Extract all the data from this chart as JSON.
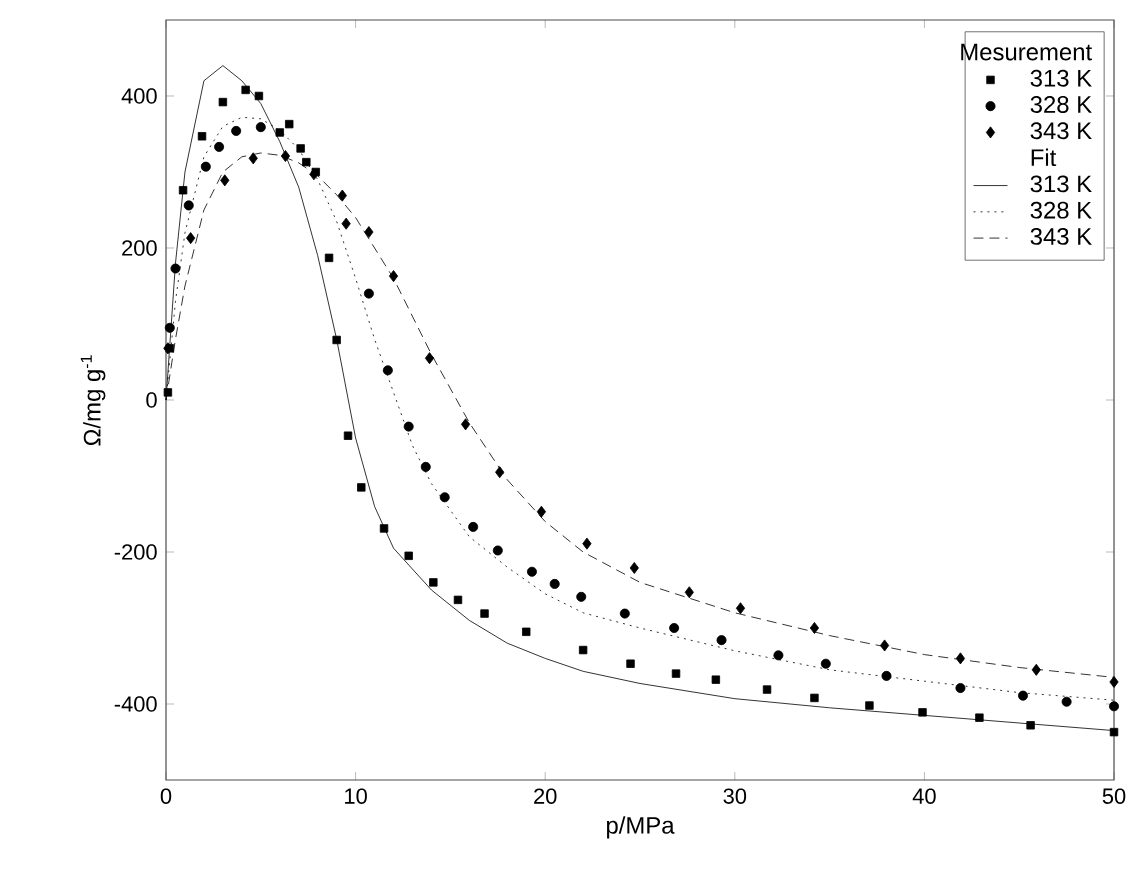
{
  "chart_data": {
    "type": "scatter",
    "xlabel": "p/MPa",
    "ylabel": "Ω/mg g$^{-1}$",
    "legend_title": "Mesurement",
    "annotations": [
      "Fit"
    ],
    "xlim": [
      0,
      50
    ],
    "ylim": [
      -500,
      500
    ],
    "xticks": [
      0,
      10,
      20,
      30,
      40,
      50
    ],
    "yticks": [
      -400,
      -200,
      0,
      200,
      400
    ],
    "legend": "top right",
    "grid": false,
    "series": [
      {
        "name": "313 K",
        "marker": "square",
        "color": "#000000",
        "x": [
          0.1,
          0.2,
          0.9,
          1.9,
          3.0,
          4.2,
          4.9,
          6.0,
          6.5,
          7.1,
          7.4,
          7.9,
          8.6,
          9.0,
          9.6,
          10.3,
          11.5,
          12.8,
          14.1,
          15.4,
          16.8,
          19.0,
          22.0,
          24.5,
          26.9,
          29.0,
          31.7,
          34.2,
          37.1,
          39.9,
          42.9,
          45.6,
          50.0
        ],
        "values": [
          10,
          68,
          276,
          347,
          392,
          408,
          400,
          352,
          363,
          331,
          313,
          300,
          187,
          79,
          -47,
          -115,
          -169,
          -205,
          -240,
          -263,
          -281,
          -305,
          -329,
          -347,
          -360,
          -368,
          -381,
          -392,
          -402,
          -411,
          -418,
          -428,
          -437
        ]
      },
      {
        "name": "328 K",
        "marker": "circle",
        "color": "#000000",
        "x": [
          0.2,
          0.5,
          1.2,
          2.1,
          2.8,
          3.7,
          5.0,
          10.7,
          11.7,
          12.8,
          13.7,
          14.7,
          16.2,
          17.5,
          19.3,
          20.5,
          21.9,
          24.2,
          26.8,
          29.3,
          32.3,
          34.8,
          38.0,
          41.9,
          45.2,
          47.5,
          50.0
        ],
        "values": [
          95,
          173,
          256,
          307,
          333,
          354,
          359,
          140,
          39,
          -35,
          -88,
          -128,
          -167,
          -198,
          -226,
          -242,
          -259,
          -281,
          -300,
          -316,
          -336,
          -347,
          -363,
          -379,
          -389,
          -397,
          -403
        ]
      },
      {
        "name": "343 K",
        "marker": "diamond",
        "color": "#000000",
        "x": [
          0.1,
          1.3,
          3.1,
          4.6,
          6.3,
          7.8,
          9.3,
          9.5,
          10.7,
          12.0,
          13.9,
          15.8,
          17.6,
          19.8,
          22.2,
          24.7,
          27.6,
          30.3,
          34.2,
          37.9,
          41.9,
          45.9,
          50.0
        ],
        "values": [
          68,
          213,
          289,
          318,
          321,
          297,
          269,
          232,
          221,
          163,
          55,
          -32,
          -95,
          -147,
          -189,
          -221,
          -253,
          -274,
          -300,
          -323,
          -340,
          -355,
          -371
        ]
      },
      {
        "name": "313 K",
        "type": "line",
        "line_style": "solid",
        "color": "#000000",
        "x": [
          0,
          0.5,
          1,
          2,
          3,
          4,
          5,
          6,
          7,
          8,
          9,
          10,
          11,
          12,
          14,
          16,
          18,
          20,
          22,
          25,
          30,
          35,
          40,
          45,
          50
        ],
        "values": [
          0,
          180,
          300,
          420,
          440,
          420,
          390,
          340,
          280,
          190,
          80,
          -50,
          -140,
          -195,
          -250,
          -290,
          -320,
          -340,
          -357,
          -373,
          -393,
          -405,
          -415,
          -425,
          -435
        ]
      },
      {
        "name": "328 K",
        "type": "line",
        "line_style": "dotted",
        "color": "#000000",
        "x": [
          0,
          0.5,
          1,
          2,
          3,
          4,
          5,
          6,
          7,
          8,
          9,
          10,
          11,
          12,
          13,
          14,
          16,
          18,
          20,
          22,
          25,
          30,
          35,
          40,
          45,
          50
        ],
        "values": [
          0,
          130,
          220,
          320,
          360,
          372,
          370,
          355,
          330,
          290,
          235,
          160,
          80,
          10,
          -60,
          -110,
          -180,
          -220,
          -255,
          -280,
          -300,
          -330,
          -355,
          -370,
          -385,
          -395
        ]
      },
      {
        "name": "343 K",
        "type": "line",
        "line_style": "dashed",
        "color": "#000000",
        "x": [
          0,
          0.5,
          1,
          2,
          3,
          4,
          5,
          6,
          7,
          8,
          9,
          10,
          11,
          12,
          13,
          14,
          16,
          18,
          20,
          22,
          25,
          30,
          35,
          40,
          45,
          50
        ],
        "values": [
          0,
          80,
          150,
          250,
          300,
          320,
          325,
          322,
          312,
          295,
          270,
          240,
          200,
          160,
          110,
          60,
          -30,
          -105,
          -160,
          -200,
          -240,
          -280,
          -310,
          -335,
          -352,
          -365
        ]
      }
    ]
  }
}
